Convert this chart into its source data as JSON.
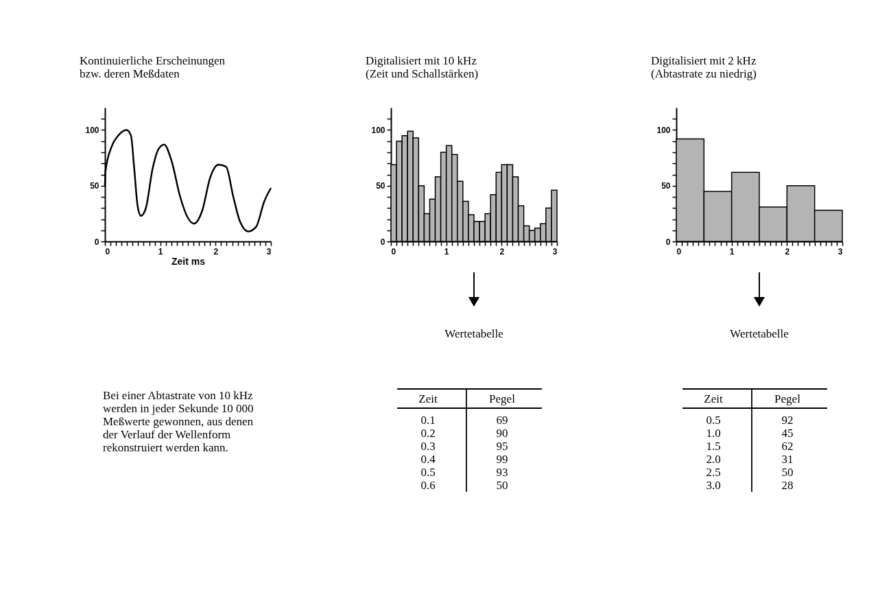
{
  "chart_data": [
    {
      "type": "line",
      "title": "Kontinuierliche Erscheinungen",
      "subtitle": "bzw. deren Meßdaten",
      "xlabel": "Zeit ms",
      "x": [
        0,
        0.01,
        0.12,
        0.24,
        0.39,
        0.47,
        0.53,
        0.59,
        0.65,
        0.74,
        0.86,
        0.97,
        1.07,
        1.2,
        1.36,
        1.49,
        1.61,
        1.76,
        1.9,
        2.05,
        2.19,
        2.32,
        2.44,
        2.59,
        2.73,
        2.88,
        3.0
      ],
      "series": [
        {
          "color": "#000000",
          "values": [
            50,
            63,
            85,
            95,
            100,
            95,
            65,
            32,
            23,
            30,
            65,
            83,
            87,
            73,
            40,
            22,
            16,
            28,
            57,
            69,
            67,
            40,
            18,
            9,
            13,
            36,
            48
          ]
        }
      ],
      "xlim": [
        0,
        3
      ],
      "ylim": [
        0,
        120
      ],
      "xticks": [
        0,
        {
          "value": 0.1,
          "label": null
        },
        {
          "value": 0.2,
          "label": null
        },
        {
          "value": 0.3,
          "label": null
        },
        {
          "value": 0.4,
          "label": null
        },
        {
          "value": 0.5,
          "label": null
        },
        {
          "value": 0.6,
          "label": null
        },
        {
          "value": 0.7,
          "label": null
        },
        {
          "value": 0.8,
          "label": null
        },
        {
          "value": 0.9,
          "label": null
        },
        1,
        {
          "value": 1.1,
          "label": null
        },
        {
          "value": 1.2,
          "label": null
        },
        {
          "value": 1.3,
          "label": null
        },
        {
          "value": 1.4,
          "label": null
        },
        {
          "value": 1.5,
          "label": null
        },
        {
          "value": 1.6,
          "label": null
        },
        {
          "value": 1.7,
          "label": null
        },
        {
          "value": 1.8,
          "label": null
        },
        {
          "value": 1.9,
          "label": null
        },
        2,
        {
          "value": 2.1,
          "label": null
        },
        {
          "value": 2.2,
          "label": null
        },
        {
          "value": 2.3,
          "label": null
        },
        {
          "value": 2.4,
          "label": null
        },
        {
          "value": 2.5,
          "label": null
        },
        {
          "value": 2.6,
          "label": null
        },
        {
          "value": 2.7,
          "label": null
        },
        {
          "value": 2.8,
          "label": null
        },
        {
          "value": 2.9,
          "label": null
        },
        3
      ],
      "yticks": [
        0,
        {
          "value": 10,
          "label": null
        },
        {
          "value": 20,
          "label": null
        },
        {
          "value": 30,
          "label": null
        },
        {
          "value": 40,
          "label": null
        },
        50,
        {
          "value": 60,
          "label": null
        },
        {
          "value": 70,
          "label": null
        },
        {
          "value": 80,
          "label": null
        },
        {
          "value": 90,
          "label": null
        },
        100,
        {
          "value": 110,
          "label": null
        }
      ],
      "grid": false,
      "annotations": [
        "Bei einer Abtastrate von 10 kHz werden in jeder Sekunde 10 000 Meßwerte gewonnen, aus denen der Verlauf der Wellenform rekonstruiert werden kann."
      ]
    },
    {
      "type": "histogram",
      "title": "Digitalisiert mit 10 kHz",
      "subtitle": "(Zeit und Schallstärken)",
      "color": "#b4b4b4",
      "bins": [
        0,
        0.1,
        0.2,
        0.3,
        0.4,
        0.5,
        0.6,
        0.7,
        0.8,
        0.9,
        1.0,
        1.1,
        1.2,
        1.3,
        1.4,
        1.5,
        1.6,
        1.7,
        1.8,
        1.9,
        2.0,
        2.1,
        2.2,
        2.3,
        2.4,
        2.5,
        2.6,
        2.7,
        2.8,
        2.9,
        3.0
      ],
      "values": [
        69,
        90,
        95,
        99,
        93,
        50,
        25,
        38,
        58,
        80,
        86,
        78,
        54,
        36,
        24,
        18,
        18,
        25,
        42,
        62,
        69,
        69,
        58,
        32,
        14,
        10,
        12,
        16,
        30,
        46
      ],
      "xlim": [
        0,
        3
      ],
      "ylim": [
        0,
        120
      ],
      "xticks": [
        0,
        {
          "value": 0.1,
          "label": null
        },
        {
          "value": 0.2,
          "label": null
        },
        {
          "value": 0.3,
          "label": null
        },
        {
          "value": 0.4,
          "label": null
        },
        {
          "value": 0.5,
          "label": null
        },
        {
          "value": 0.6,
          "label": null
        },
        {
          "value": 0.7,
          "label": null
        },
        {
          "value": 0.8,
          "label": null
        },
        {
          "value": 0.9,
          "label": null
        },
        1,
        {
          "value": 1.1,
          "label": null
        },
        {
          "value": 1.2,
          "label": null
        },
        {
          "value": 1.3,
          "label": null
        },
        {
          "value": 1.4,
          "label": null
        },
        {
          "value": 1.5,
          "label": null
        },
        {
          "value": 1.6,
          "label": null
        },
        {
          "value": 1.7,
          "label": null
        },
        {
          "value": 1.8,
          "label": null
        },
        {
          "value": 1.9,
          "label": null
        },
        2,
        {
          "value": 2.1,
          "label": null
        },
        {
          "value": 2.2,
          "label": null
        },
        {
          "value": 2.3,
          "label": null
        },
        {
          "value": 2.4,
          "label": null
        },
        {
          "value": 2.5,
          "label": null
        },
        {
          "value": 2.6,
          "label": null
        },
        {
          "value": 2.7,
          "label": null
        },
        {
          "value": 2.8,
          "label": null
        },
        {
          "value": 2.9,
          "label": null
        },
        3
      ],
      "yticks": [
        0,
        {
          "value": 10,
          "label": null
        },
        {
          "value": 20,
          "label": null
        },
        {
          "value": 30,
          "label": null
        },
        {
          "value": 40,
          "label": null
        },
        50,
        {
          "value": 60,
          "label": null
        },
        {
          "value": 70,
          "label": null
        },
        {
          "value": 80,
          "label": null
        },
        {
          "value": 90,
          "label": null
        },
        100,
        {
          "value": 110,
          "label": null
        }
      ],
      "grid": false,
      "annotations": [
        "Wertetabelle",
        "Zeit",
        "Pegel",
        "0.1",
        "69",
        "0.2",
        "90",
        "0.3",
        "95",
        "0.4",
        "99",
        "0.5",
        "93",
        "0.6",
        "50"
      ]
    },
    {
      "type": "histogram",
      "title": "Digitalisiert mit 2 kHz",
      "subtitle": "(Abtastrate zu niedrig)",
      "color": "#b4b4b4",
      "bins": [
        0,
        0.5,
        1.0,
        1.5,
        2.0,
        2.5,
        3.0
      ],
      "values": [
        92,
        45,
        62,
        31,
        50,
        28
      ],
      "xlim": [
        0,
        3
      ],
      "ylim": [
        0,
        120
      ],
      "xticks": [
        0,
        {
          "value": 0.1,
          "label": null
        },
        {
          "value": 0.2,
          "label": null
        },
        {
          "value": 0.3,
          "label": null
        },
        {
          "value": 0.4,
          "label": null
        },
        {
          "value": 0.5,
          "label": null
        },
        {
          "value": 0.6,
          "label": null
        },
        {
          "value": 0.7,
          "label": null
        },
        {
          "value": 0.8,
          "label": null
        },
        {
          "value": 0.9,
          "label": null
        },
        1,
        {
          "value": 1.1,
          "label": null
        },
        {
          "value": 1.2,
          "label": null
        },
        {
          "value": 1.3,
          "label": null
        },
        {
          "value": 1.4,
          "label": null
        },
        {
          "value": 1.5,
          "label": null
        },
        {
          "value": 1.6,
          "label": null
        },
        {
          "value": 1.7,
          "label": null
        },
        {
          "value": 1.8,
          "label": null
        },
        {
          "value": 1.9,
          "label": null
        },
        2,
        {
          "value": 2.1,
          "label": null
        },
        {
          "value": 2.2,
          "label": null
        },
        {
          "value": 2.3,
          "label": null
        },
        {
          "value": 2.4,
          "label": null
        },
        {
          "value": 2.5,
          "label": null
        },
        {
          "value": 2.6,
          "label": null
        },
        {
          "value": 2.7,
          "label": null
        },
        {
          "value": 2.8,
          "label": null
        },
        {
          "value": 2.9,
          "label": null
        },
        3
      ],
      "yticks": [
        0,
        {
          "value": 10,
          "label": null
        },
        {
          "value": 20,
          "label": null
        },
        {
          "value": 30,
          "label": null
        },
        {
          "value": 40,
          "label": null
        },
        50,
        {
          "value": 60,
          "label": null
        },
        {
          "value": 70,
          "label": null
        },
        {
          "value": 80,
          "label": null
        },
        {
          "value": 90,
          "label": null
        },
        100,
        {
          "value": 110,
          "label": null
        }
      ],
      "grid": false,
      "annotations": [
        "Wertetabelle",
        "Zeit",
        "Pegel",
        "0.5",
        "92",
        "1.0",
        "45",
        "1.5",
        "62",
        "2.0",
        "31",
        "2.5",
        "50",
        "3.0",
        "28"
      ]
    }
  ]
}
